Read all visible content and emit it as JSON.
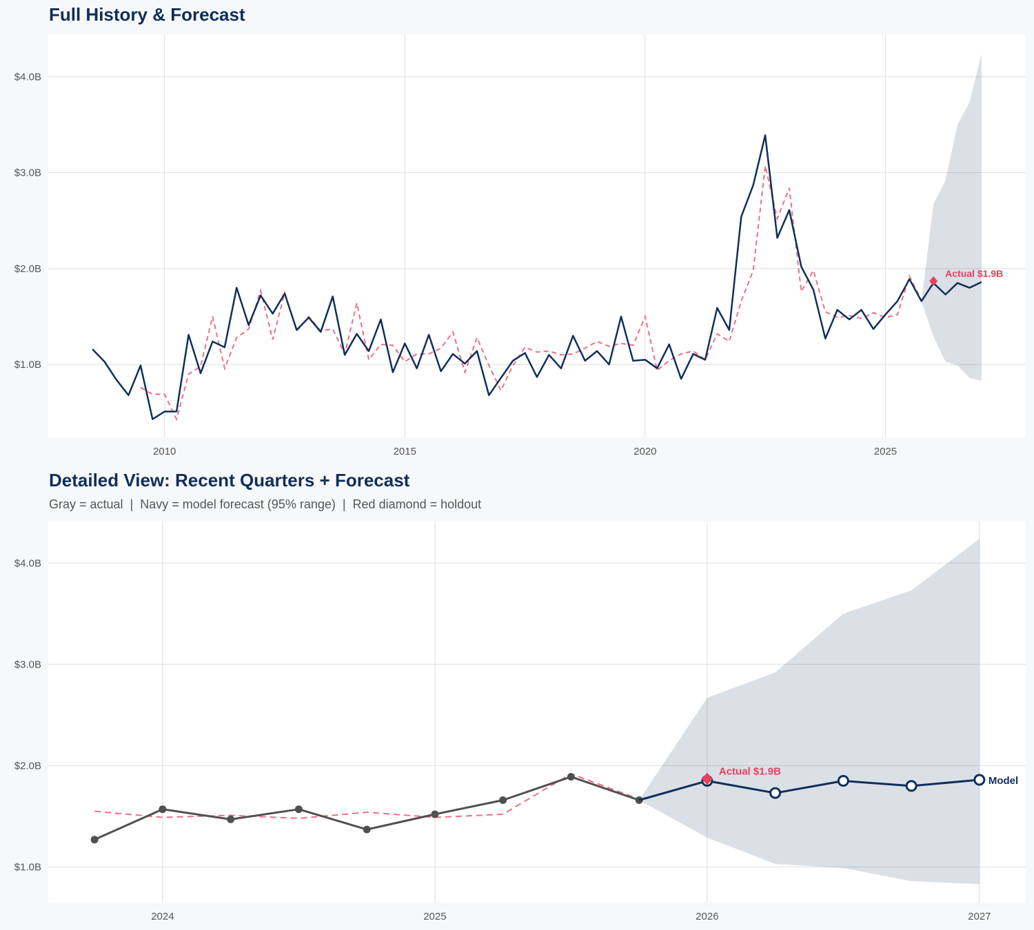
{
  "colors": {
    "navy": "#0f2f5a",
    "gray": "#505050",
    "red": "#e8405e",
    "band": "#dadfe6",
    "fitted": "#ee6f86"
  },
  "chart_data": [
    {
      "type": "line",
      "title": "Full History & Forecast",
      "subtitle": "",
      "xlim": [
        2007.58,
        2027.92
      ],
      "ylim": [
        0.24,
        4.44
      ],
      "grid": true,
      "xticks": [
        2010,
        2015,
        2020,
        2025
      ],
      "xtick_labels": [
        "2010",
        "2015",
        "2020",
        "2025"
      ],
      "yticks": [
        1,
        2,
        3,
        4
      ],
      "ytick_labels": [
        "$1.0B",
        "$2.0B",
        "$3.0B",
        "$4.0B"
      ],
      "history": {
        "x_start": 2008.5,
        "step": 0.25,
        "values": [
          1.16,
          1.03,
          0.84,
          0.68,
          0.99,
          0.43,
          0.51,
          0.51,
          1.31,
          0.91,
          1.24,
          1.18,
          1.8,
          1.41,
          1.72,
          1.53,
          1.74,
          1.36,
          1.49,
          1.34,
          1.71,
          1.1,
          1.32,
          1.14,
          1.47,
          0.92,
          1.22,
          0.96,
          1.31,
          0.93,
          1.11,
          1.01,
          1.14,
          0.68,
          0.86,
          1.04,
          1.12,
          0.87,
          1.1,
          0.96,
          1.3,
          1.04,
          1.14,
          1.0,
          1.5,
          1.04,
          1.05,
          0.96,
          1.21,
          0.85,
          1.11,
          1.05,
          1.59,
          1.36,
          2.54,
          2.87,
          3.39,
          2.32,
          2.61,
          2.02,
          1.78,
          1.27,
          1.57,
          1.47,
          1.57,
          1.37,
          1.52,
          1.66,
          1.89,
          1.66
        ]
      },
      "fitted": {
        "x_start": 2009.5,
        "step": 0.25,
        "values": [
          0.76,
          0.69,
          0.69,
          0.43,
          0.9,
          0.98,
          1.5,
          0.96,
          1.28,
          1.37,
          1.77,
          1.26,
          1.75,
          1.35,
          1.5,
          1.35,
          1.37,
          1.11,
          1.64,
          1.05,
          1.21,
          1.2,
          1.03,
          1.11,
          1.11,
          1.17,
          1.34,
          0.92,
          1.28,
          0.99,
          0.73,
          0.99,
          1.18,
          1.13,
          1.14,
          1.1,
          1.11,
          1.17,
          1.24,
          1.19,
          1.22,
          1.2,
          1.5,
          0.94,
          1.04,
          1.11,
          1.14,
          1.05,
          1.32,
          1.24,
          1.66,
          1.98,
          3.07,
          2.52,
          2.84,
          1.76,
          1.98,
          1.55,
          1.49,
          1.51,
          1.48,
          1.54,
          1.49,
          1.52,
          1.92,
          1.67
        ]
      },
      "forecast": {
        "x": [
          2025.75,
          2026.0,
          2026.25,
          2026.5,
          2026.75,
          2027.0
        ],
        "values": [
          1.66,
          1.85,
          1.73,
          1.85,
          1.8,
          1.86
        ],
        "lower": [
          1.66,
          1.29,
          1.03,
          0.99,
          0.86,
          0.83
        ],
        "upper": [
          1.66,
          2.67,
          2.92,
          3.5,
          3.73,
          4.24
        ]
      },
      "holdout": {
        "x": 2026.0,
        "value": 1.87,
        "label": "Actual $1.9B"
      }
    },
    {
      "type": "line",
      "title": "Detailed View: Recent Quarters + Forecast",
      "subtitle": "Gray = actual  |  Navy = model forecast (95% range)  |  Red diamond = holdout",
      "xlim": [
        2023.58,
        2027.17
      ],
      "ylim": [
        0.65,
        4.41
      ],
      "grid": true,
      "xticks": [
        2024,
        2025,
        2026,
        2027
      ],
      "xtick_labels": [
        "2024",
        "2025",
        "2026",
        "2027"
      ],
      "yticks": [
        1,
        2,
        3,
        4
      ],
      "ytick_labels": [
        "$1.0B",
        "$2.0B",
        "$3.0B",
        "$4.0B"
      ],
      "actual": {
        "x": [
          2023.75,
          2024.0,
          2024.25,
          2024.5,
          2024.75,
          2025.0,
          2025.25,
          2025.5,
          2025.75
        ],
        "values": [
          1.27,
          1.57,
          1.47,
          1.57,
          1.37,
          1.52,
          1.66,
          1.89,
          1.66
        ]
      },
      "fitted": {
        "x": [
          2023.75,
          2024.0,
          2024.25,
          2024.5,
          2024.75,
          2025.0,
          2025.25,
          2025.5,
          2025.75
        ],
        "values": [
          1.55,
          1.49,
          1.51,
          1.48,
          1.54,
          1.49,
          1.52,
          1.92,
          1.67
        ]
      },
      "forecast": {
        "x": [
          2025.75,
          2026.0,
          2026.25,
          2026.5,
          2026.75,
          2027.0
        ],
        "values": [
          1.66,
          1.85,
          1.73,
          1.85,
          1.8,
          1.86
        ],
        "lower": [
          1.66,
          1.29,
          1.03,
          0.99,
          0.86,
          0.83
        ],
        "upper": [
          1.66,
          2.67,
          2.92,
          3.5,
          3.73,
          4.24
        ],
        "label": "Model"
      },
      "holdout": {
        "x": 2026.0,
        "value": 1.87,
        "label": "Actual $1.9B"
      }
    }
  ]
}
